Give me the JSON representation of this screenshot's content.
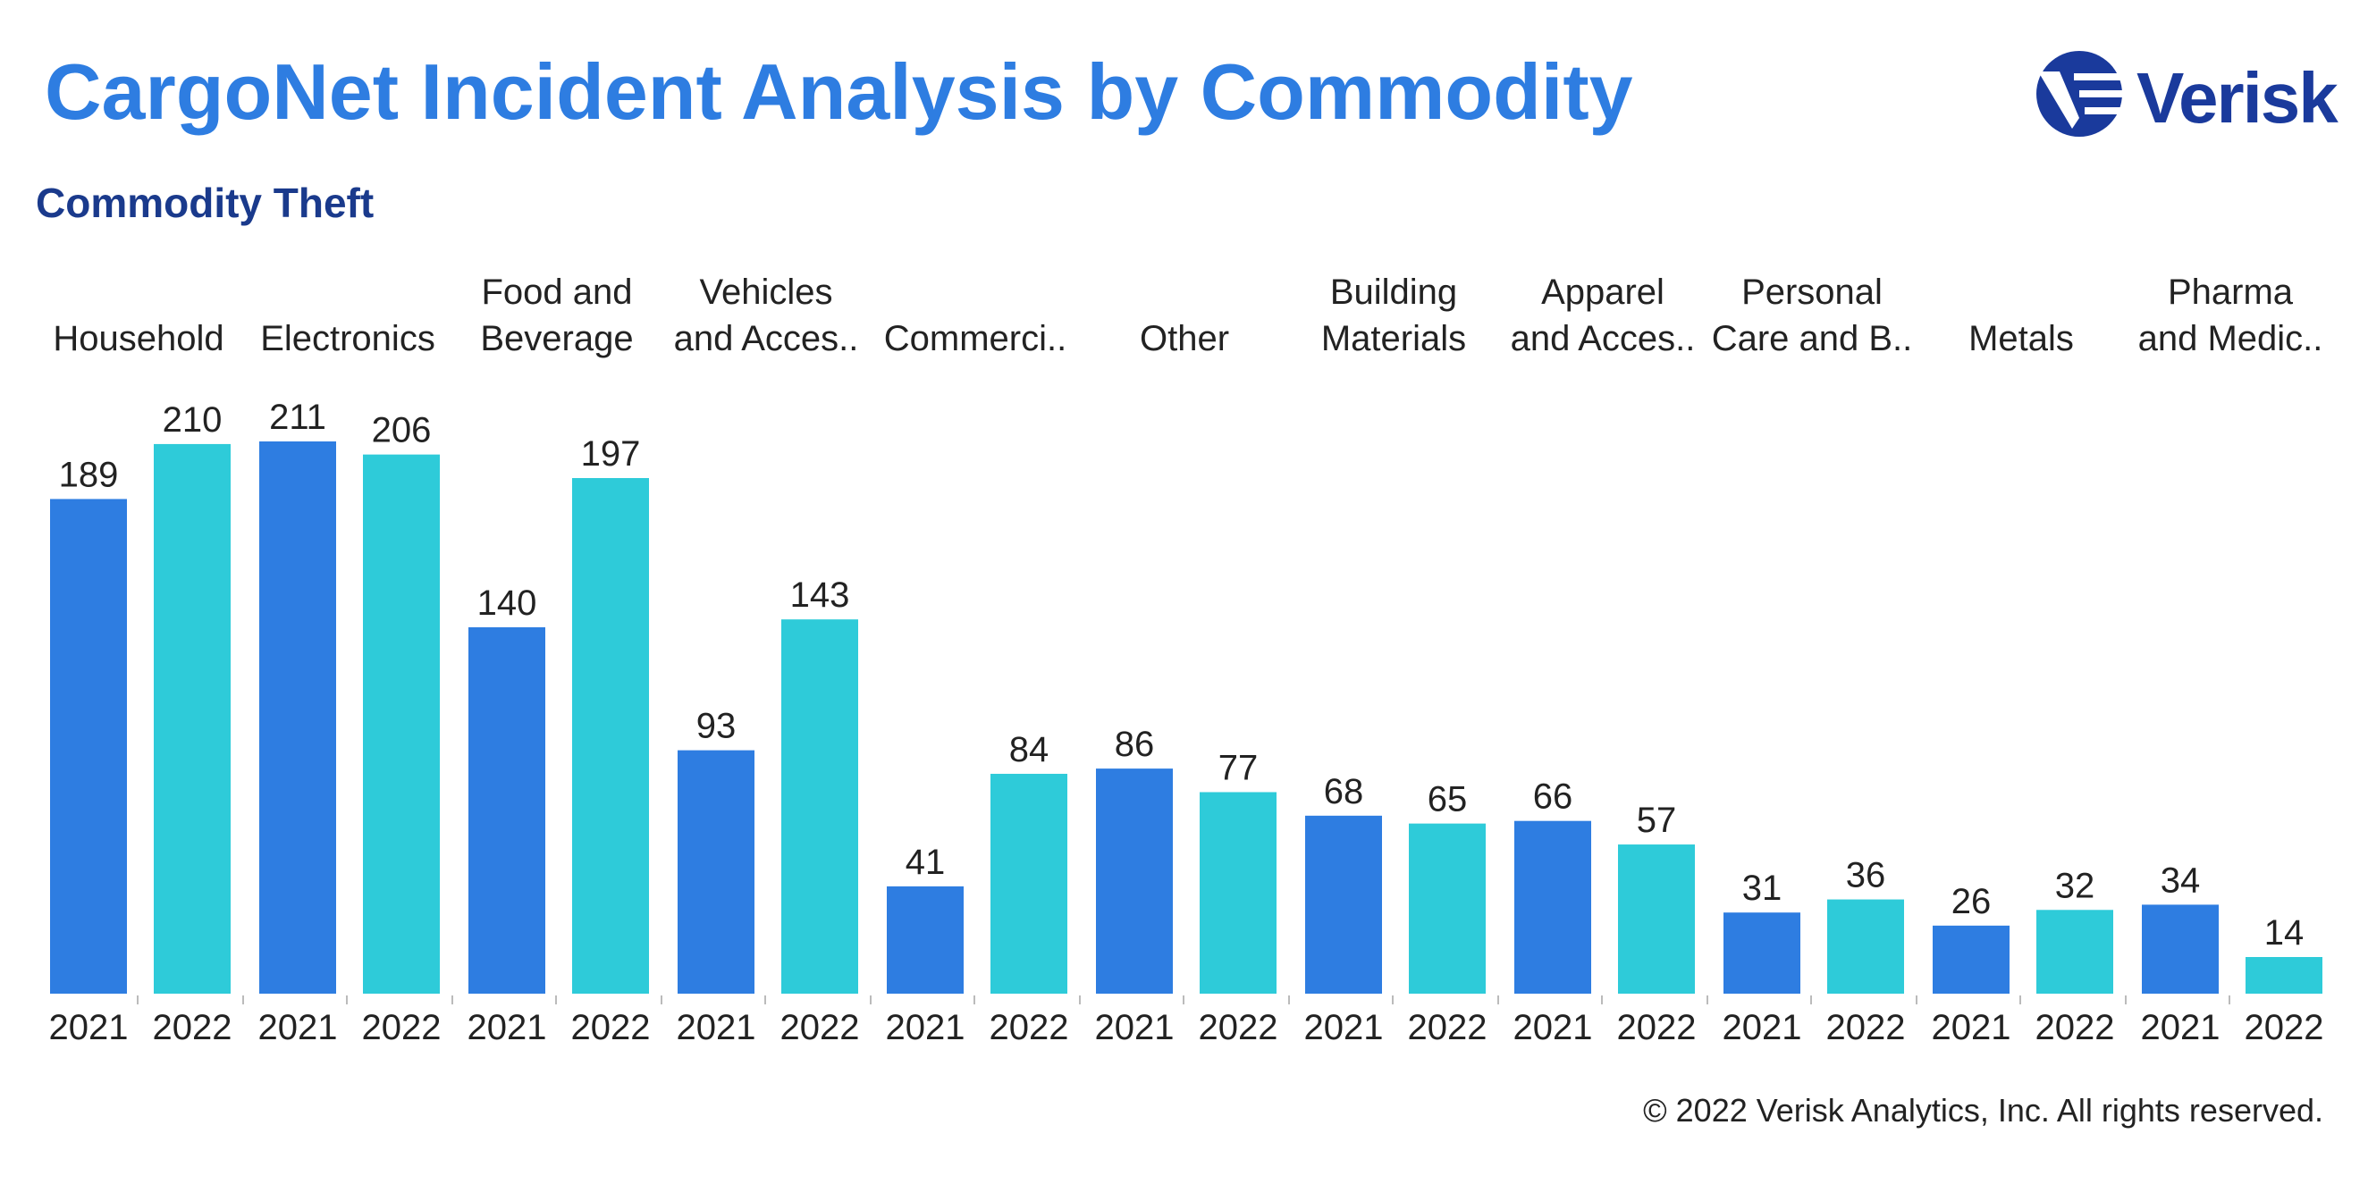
{
  "header": {
    "title": "CargoNet Incident Analysis by Commodity",
    "subtitle": "Commodity Theft",
    "logo_text": "Verisk"
  },
  "footer": {
    "copyright": "© 2022 Verisk Analytics, Inc. All rights reserved."
  },
  "colors": {
    "title": "#2e7de1",
    "subtitle": "#1a3a8c",
    "series_2021": "#2e7de1",
    "series_2022": "#2ecbd9",
    "logo": "#1a3a9c"
  },
  "chart_data": {
    "type": "bar",
    "title": "Commodity Theft",
    "xlabel": "",
    "ylabel": "",
    "ylim": [
      0,
      211
    ],
    "grid": false,
    "legend": "none",
    "groups": [
      {
        "label_lines": [
          "Household"
        ],
        "values": [
          189,
          210
        ]
      },
      {
        "label_lines": [
          "Electronics"
        ],
        "values": [
          211,
          206
        ]
      },
      {
        "label_lines": [
          "Food and",
          "Beverage"
        ],
        "values": [
          140,
          197
        ]
      },
      {
        "label_lines": [
          "Vehicles",
          "and Acces.."
        ],
        "values": [
          93,
          143
        ]
      },
      {
        "label_lines": [
          "Commerci.."
        ],
        "values": [
          41,
          84
        ]
      },
      {
        "label_lines": [
          "Other"
        ],
        "values": [
          86,
          77
        ]
      },
      {
        "label_lines": [
          "Building",
          "Materials"
        ],
        "values": [
          68,
          65
        ]
      },
      {
        "label_lines": [
          "Apparel",
          "and Acces.."
        ],
        "values": [
          66,
          57
        ]
      },
      {
        "label_lines": [
          "Personal",
          "Care and B.."
        ],
        "values": [
          31,
          36
        ]
      },
      {
        "label_lines": [
          "Metals"
        ],
        "values": [
          26,
          32
        ]
      },
      {
        "label_lines": [
          "Pharma",
          "and Medic.."
        ],
        "values": [
          34,
          14
        ]
      }
    ],
    "series": [
      {
        "name": "2021"
      },
      {
        "name": "2022"
      }
    ]
  }
}
